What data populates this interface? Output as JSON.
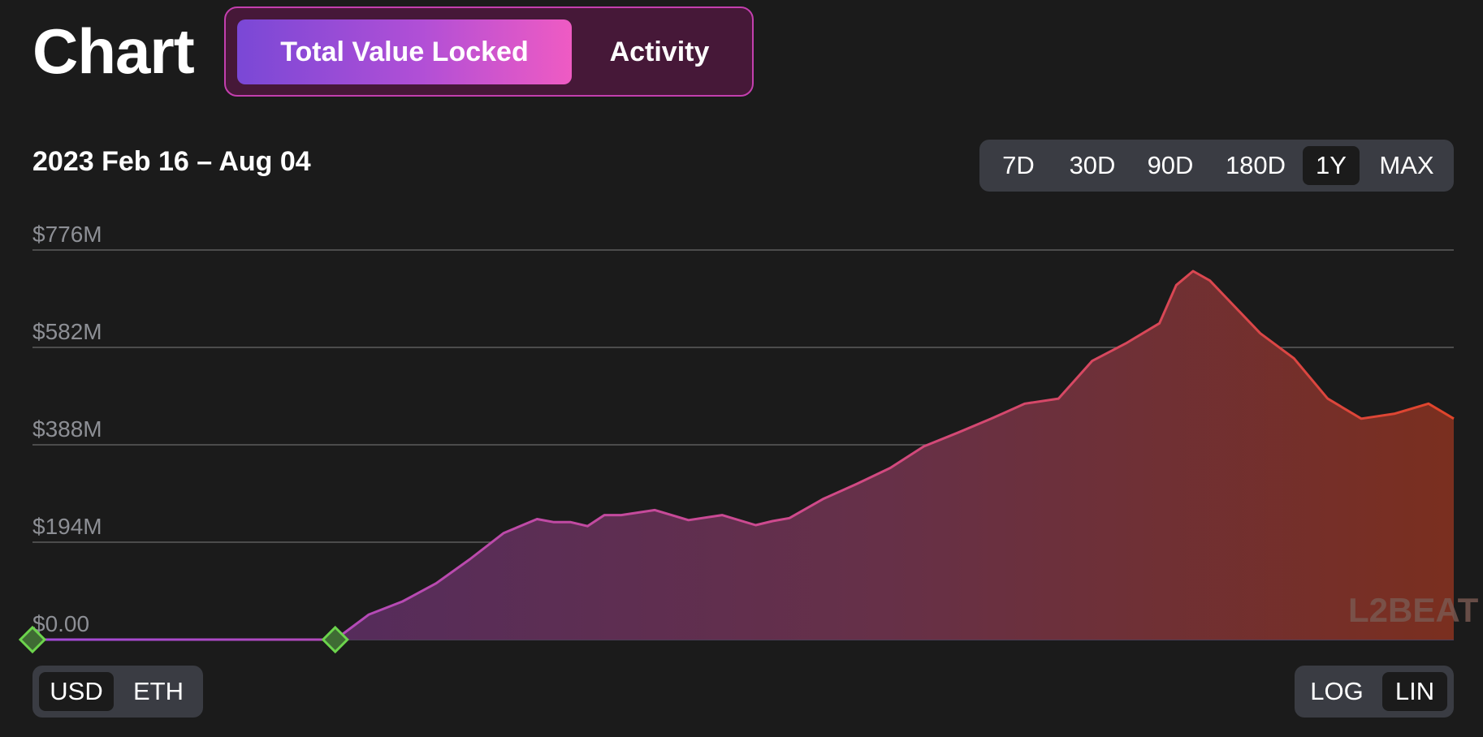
{
  "header": {
    "title": "Chart",
    "tabs": [
      {
        "label": "Total Value Locked",
        "active": true
      },
      {
        "label": "Activity",
        "active": false
      }
    ]
  },
  "range": {
    "label": "2023 Feb 16 – Aug 04",
    "options": [
      "7D",
      "30D",
      "90D",
      "180D",
      "1Y",
      "MAX"
    ],
    "selected": "1Y"
  },
  "unit_toggle": {
    "options": [
      "USD",
      "ETH"
    ],
    "selected": "USD"
  },
  "scale_toggle": {
    "options": [
      "LOG",
      "LIN"
    ],
    "selected": "LIN"
  },
  "watermark": "L2BEAT",
  "colors": {
    "gradient_start": "#a14ad8",
    "gradient_end": "#e0452a",
    "marker": "#6cd44c",
    "active_tab_left": "#7a48d6",
    "active_tab_right": "#ef5bc3"
  },
  "chart_data": {
    "type": "area",
    "title": "",
    "xlabel": "",
    "ylabel": "",
    "xlim": [
      "2023-02-16",
      "2023-08-04"
    ],
    "ylim": [
      0,
      776
    ],
    "y_unit": "$M",
    "y_ticks": [
      "$0.00",
      "$194M",
      "$388M",
      "$582M",
      "$776M"
    ],
    "y_tick_values": [
      0,
      194,
      388,
      582,
      776
    ],
    "grid": true,
    "legend": "none",
    "markers": [
      {
        "x": "2023-02-16",
        "y": 0
      },
      {
        "x": "2023-03-24",
        "y": 0
      }
    ],
    "series": [
      {
        "x": [
          "2023-02-16",
          "2023-03-24",
          "2023-03-28",
          "2023-04-01",
          "2023-04-05",
          "2023-04-09",
          "2023-04-13",
          "2023-04-17",
          "2023-04-19",
          "2023-04-21",
          "2023-04-23",
          "2023-04-25",
          "2023-04-27",
          "2023-05-01",
          "2023-05-05",
          "2023-05-09",
          "2023-05-13",
          "2023-05-15",
          "2023-05-17",
          "2023-05-21",
          "2023-05-25",
          "2023-05-29",
          "2023-06-02",
          "2023-06-06",
          "2023-06-10",
          "2023-06-14",
          "2023-06-18",
          "2023-06-22",
          "2023-06-26",
          "2023-06-30",
          "2023-07-02",
          "2023-07-04",
          "2023-07-06",
          "2023-07-08",
          "2023-07-12",
          "2023-07-16",
          "2023-07-20",
          "2023-07-24",
          "2023-07-28",
          "2023-08-01",
          "2023-08-04"
        ],
        "values": [
          0,
          0,
          50,
          76,
          112,
          160,
          212,
          240,
          234,
          234,
          226,
          248,
          248,
          258,
          238,
          248,
          228,
          236,
          242,
          280,
          310,
          342,
          385,
          412,
          440,
          470,
          480,
          555,
          590,
          630,
          706,
          734,
          715,
          680,
          610,
          560,
          480,
          440,
          450,
          470,
          440
        ]
      }
    ]
  }
}
